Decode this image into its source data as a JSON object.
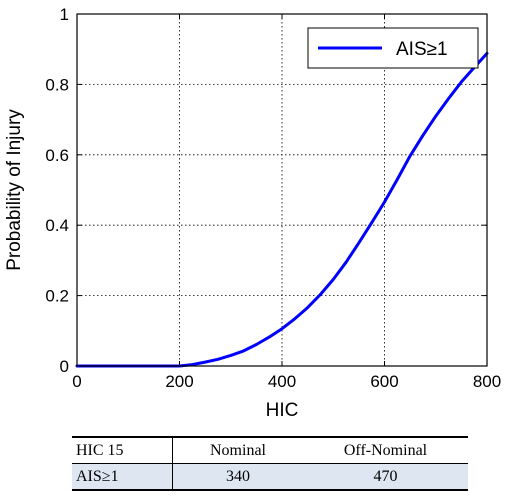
{
  "chart_data": {
    "type": "line",
    "xlabel": "HIC",
    "ylabel": "Probability of Injury",
    "xlim": [
      0,
      800
    ],
    "ylim": [
      0,
      1
    ],
    "xticks": [
      "0",
      "200",
      "400",
      "600",
      "800"
    ],
    "yticks": [
      "0",
      "0.2",
      "0.4",
      "0.6",
      "0.8",
      "1"
    ],
    "grid": true,
    "legend_position": "top-right",
    "series": [
      {
        "name": "AIS≥1",
        "color": "#0000ff",
        "x": [
          0,
          100,
          150,
          200,
          225,
          250,
          275,
          300,
          325,
          350,
          375,
          400,
          425,
          450,
          475,
          500,
          525,
          550,
          575,
          600,
          625,
          650,
          675,
          700,
          725,
          750,
          775,
          800
        ],
        "y": [
          0.0,
          0.0,
          0.0,
          0.0,
          0.004,
          0.011,
          0.019,
          0.03,
          0.043,
          0.061,
          0.082,
          0.106,
          0.134,
          0.166,
          0.203,
          0.246,
          0.295,
          0.35,
          0.407,
          0.466,
          0.53,
          0.597,
          0.655,
          0.71,
          0.76,
          0.807,
          0.848,
          0.888
        ]
      }
    ]
  },
  "table": {
    "headers": [
      "HIC 15",
      "Nominal",
      "Off-Nominal"
    ],
    "rows": [
      [
        "AIS≥1",
        "340",
        "470"
      ]
    ]
  }
}
